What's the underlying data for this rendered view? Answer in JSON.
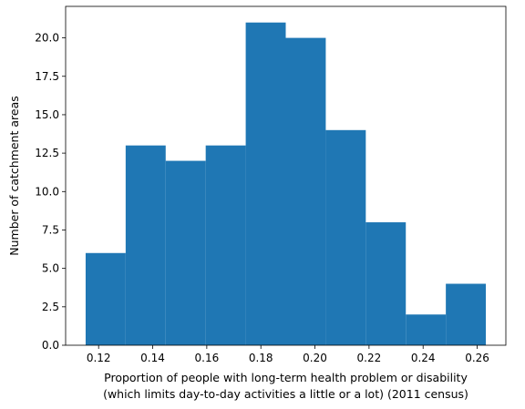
{
  "chart_data": {
    "type": "bar",
    "subtype": "histogram",
    "bin_edges": [
      0.1152,
      0.13,
      0.1448,
      0.1596,
      0.1744,
      0.1892,
      0.204,
      0.2188,
      0.2336,
      0.2484,
      0.2632
    ],
    "values": [
      6,
      13,
      12,
      13,
      21,
      20,
      14,
      8,
      2,
      4
    ],
    "xlim": [
      0.1078,
      0.2706
    ],
    "ylim": [
      0,
      22.05
    ],
    "xticks": [
      0.12,
      0.14,
      0.16,
      0.18,
      0.2,
      0.22,
      0.24,
      0.26
    ],
    "xtick_labels": [
      "0.12",
      "0.14",
      "0.16",
      "0.18",
      "0.20",
      "0.22",
      "0.24",
      "0.26"
    ],
    "yticks": [
      0,
      2.5,
      5,
      7.5,
      10,
      12.5,
      15,
      17.5,
      20
    ],
    "ytick_labels": [
      "0.0",
      "2.5",
      "5.0",
      "7.5",
      "10.0",
      "12.5",
      "15.0",
      "17.5",
      "20.0"
    ],
    "xlabel_line1": "Proportion of people with long-term health problem or disability",
    "xlabel_line2": "(which limits day-to-day activities a little or a lot) (2011 census)",
    "ylabel": "Number of catchment areas",
    "title": "",
    "grid": false,
    "legend": "none",
    "bar_color": "#1f77b4"
  }
}
